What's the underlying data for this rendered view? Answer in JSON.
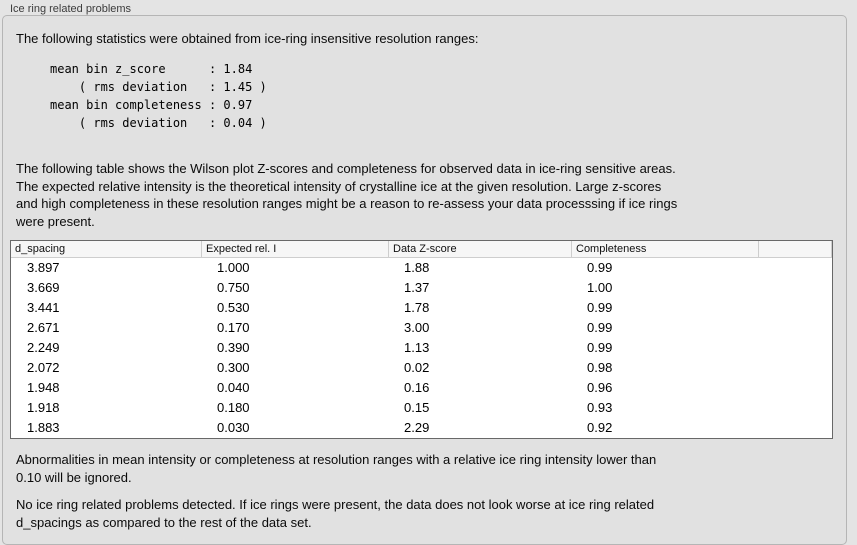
{
  "panel": {
    "title": "Ice ring related problems"
  },
  "intro": {
    "text": "The following statistics were obtained from ice-ring insensitive resolution ranges:"
  },
  "statistics": {
    "mean_bin_z_score": "1.84",
    "z_score_rms_deviation": "1.45",
    "mean_bin_completeness": "0.97",
    "completeness_rms_deviation": "0.04",
    "text": "mean bin z_score      : 1.84\n    ( rms deviation   : 1.45 )\nmean bin completeness : 0.97\n    ( rms deviation   : 0.04 )"
  },
  "table_description": {
    "text": "The following table shows the Wilson plot Z-scores and completeness for observed data in ice-ring sensitive areas.\nThe expected relative intensity is the theoretical intensity of crystalline ice at the given resolution. Large z-scores\nand high completeness in these resolution ranges might be a reason to re-assess your data processsing if ice rings\nwere present."
  },
  "table": {
    "columns": [
      "d_spacing",
      "Expected rel. I",
      "Data Z-score",
      "Completeness",
      ""
    ],
    "rows": [
      [
        "3.897",
        "1.000",
        "1.88",
        "0.99"
      ],
      [
        "3.669",
        "0.750",
        "1.37",
        "1.00"
      ],
      [
        "3.441",
        "0.530",
        "1.78",
        "0.99"
      ],
      [
        "2.671",
        "0.170",
        "3.00",
        "0.99"
      ],
      [
        "2.249",
        "0.390",
        "1.13",
        "0.99"
      ],
      [
        "2.072",
        "0.300",
        "0.02",
        "0.98"
      ],
      [
        "1.948",
        "0.040",
        "0.16",
        "0.96"
      ],
      [
        "1.918",
        "0.180",
        "0.15",
        "0.93"
      ],
      [
        "1.883",
        "0.030",
        "2.29",
        "0.92"
      ]
    ]
  },
  "notes": {
    "ignore_note": "Abnormalities in mean intensity or completeness at resolution ranges with a relative ice ring intensity lower than\n0.10 will be ignored.",
    "conclusion": "No ice ring related problems detected. If ice rings were present, the data does not look worse at ice ring related\nd_spacings as compared to the rest of the data set."
  }
}
